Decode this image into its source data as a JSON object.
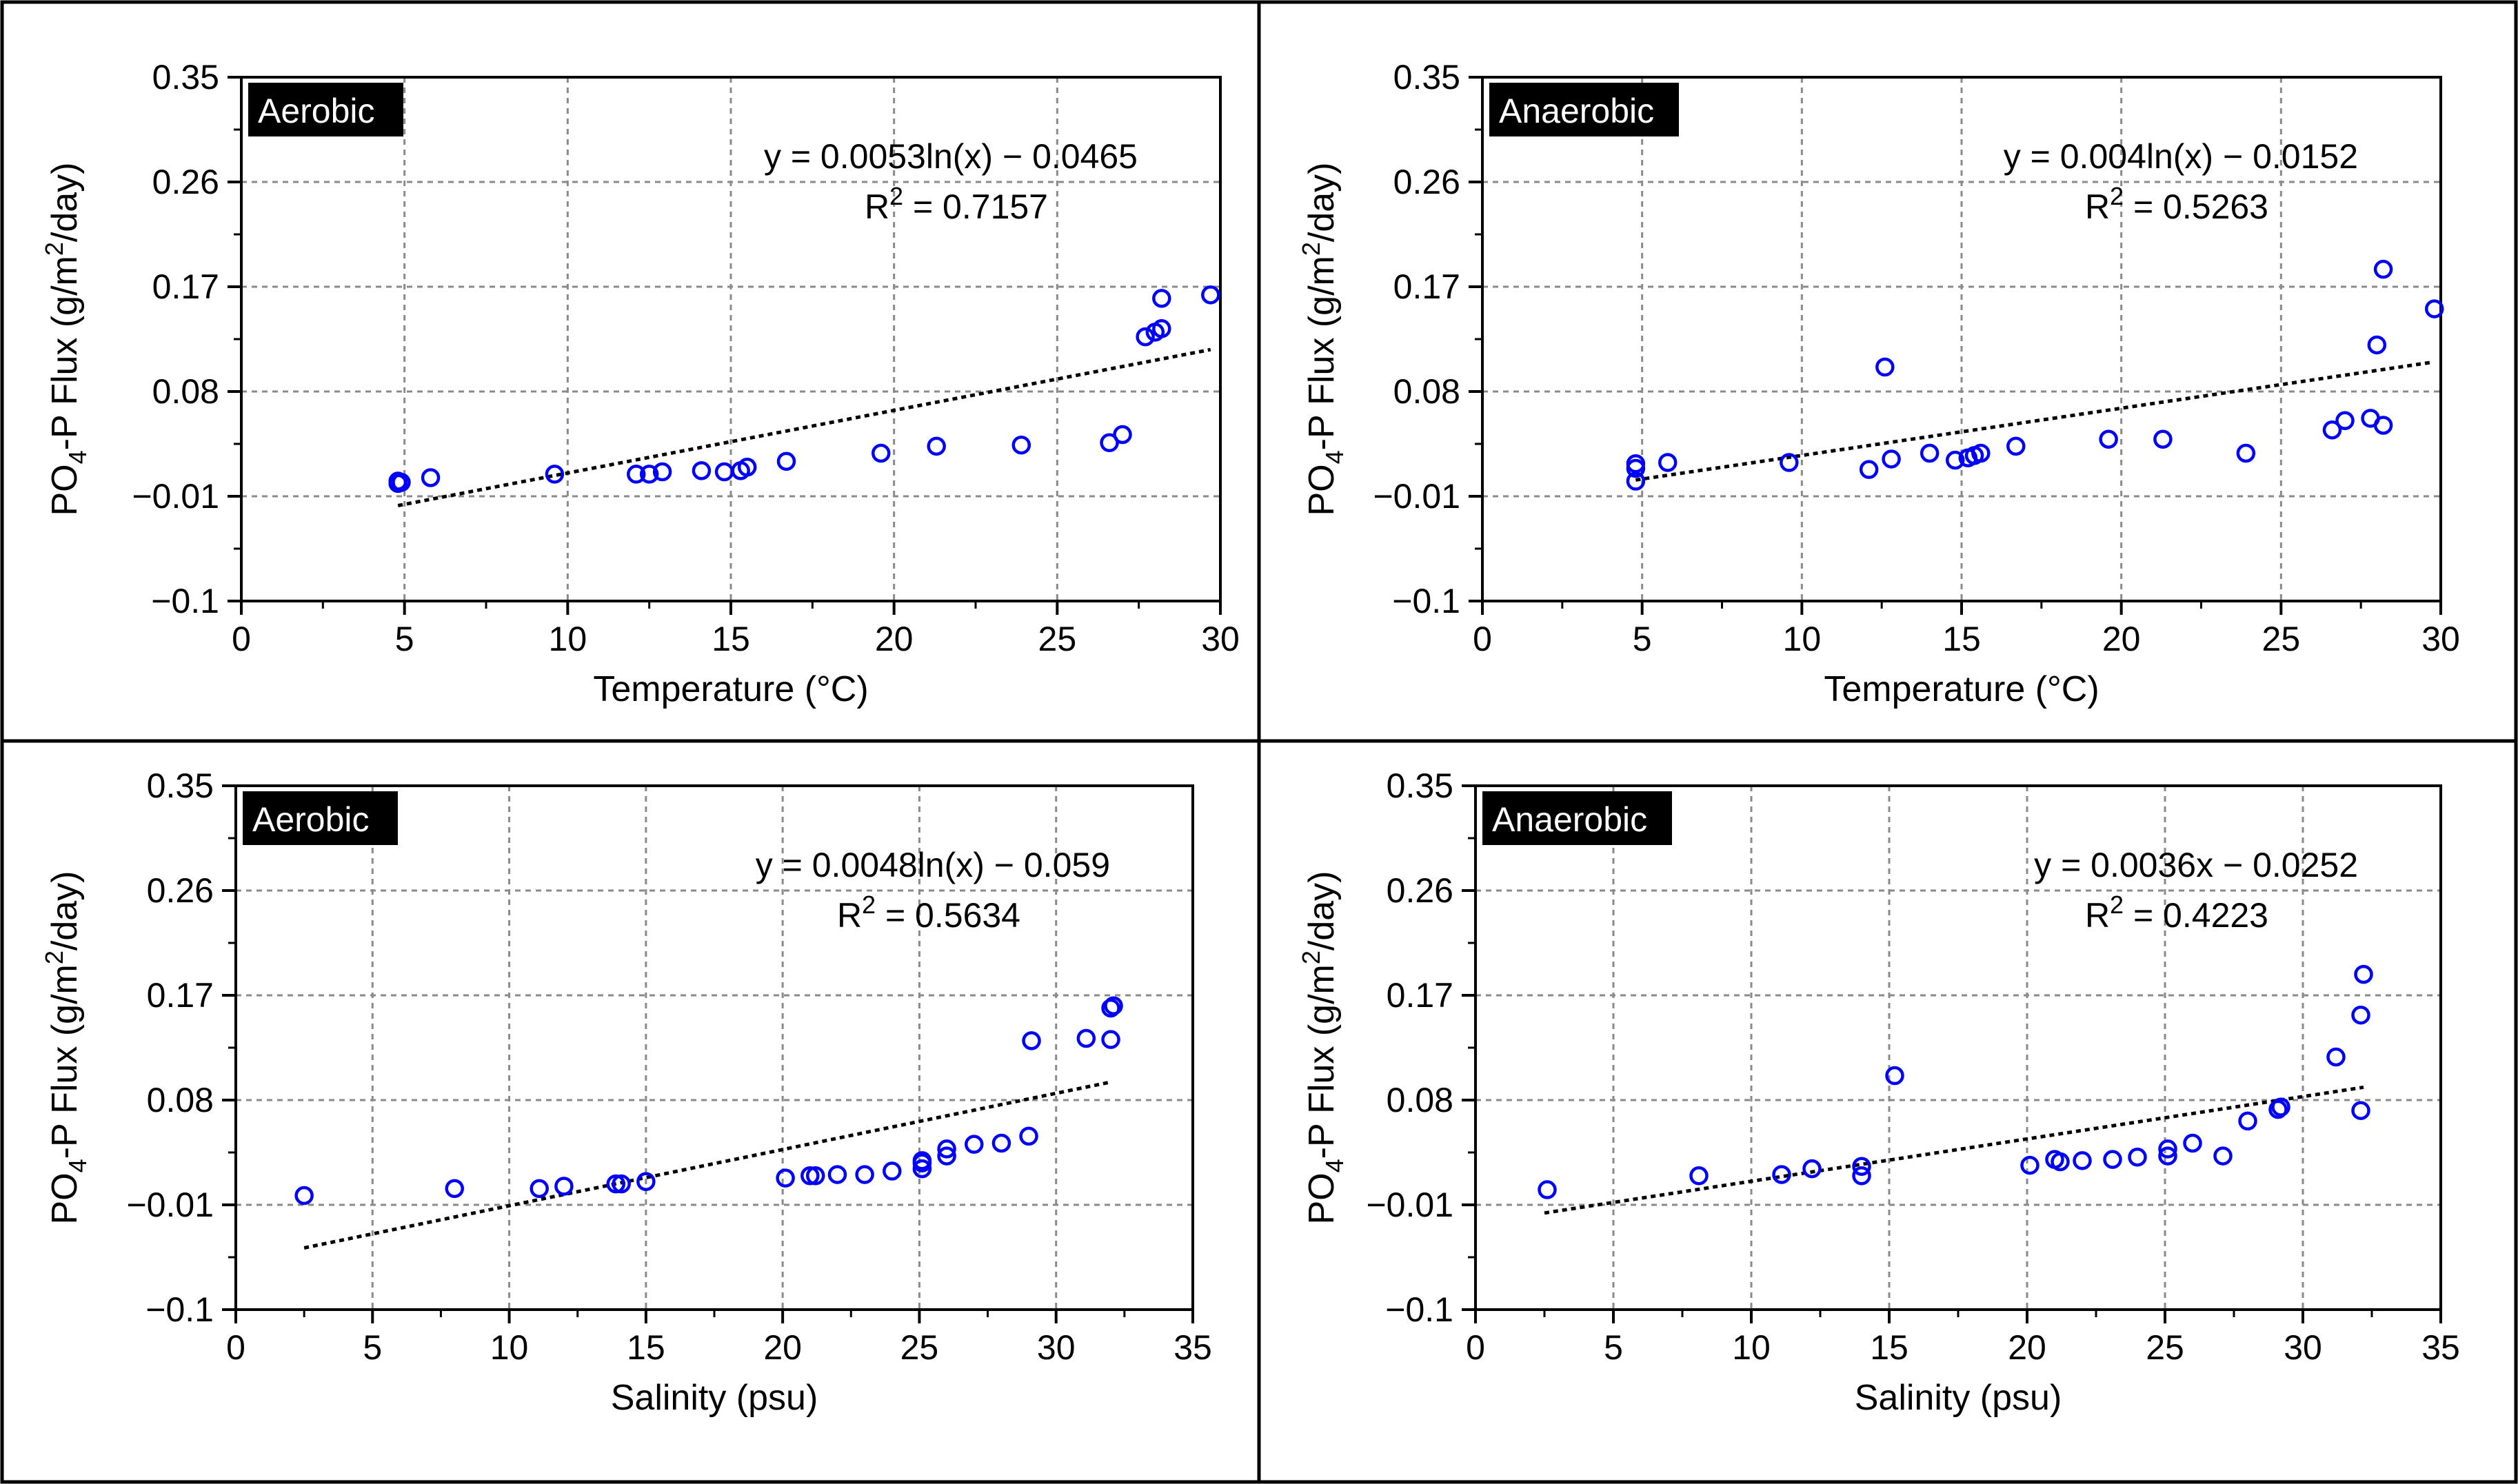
{
  "figure": {
    "line_color": "#000000",
    "marker_color": "#0000ff",
    "grid_color": "#8a8a8a",
    "label_bg": "#000000",
    "label_fg": "#ffffff"
  },
  "chart_data": [
    {
      "id": "temp-aerobic",
      "type": "scatter",
      "condition": "Aerobic",
      "xlabel": "Temperature (°C)",
      "ylabel": "PO4-P Flux (g/m2/day)",
      "xlim": [
        0,
        30
      ],
      "ylim": [
        -0.1,
        0.35
      ],
      "xticks": [
        0,
        5,
        10,
        15,
        20,
        25,
        30
      ],
      "yticks": [
        -0.1,
        -0.01,
        0.08,
        0.17,
        0.26,
        0.35
      ],
      "equation": "y = 0.0053ln(x) − 0.0465",
      "r2_label": "R2 = 0.7157",
      "r2_prefix": "R",
      "r2_value": " = 0.7157",
      "trend": {
        "model": "linear-fit",
        "x": [
          4.8,
          29.7
        ],
        "y": [
          -0.018,
          0.116
        ]
      },
      "points": [
        [
          4.8,
          0.003
        ],
        [
          4.8,
          0.001
        ],
        [
          4.9,
          0.002
        ],
        [
          5.8,
          0.006
        ],
        [
          9.6,
          0.009
        ],
        [
          12.1,
          0.009
        ],
        [
          12.5,
          0.009
        ],
        [
          12.9,
          0.011
        ],
        [
          14.1,
          0.012
        ],
        [
          14.8,
          0.011
        ],
        [
          15.3,
          0.012
        ],
        [
          15.5,
          0.015
        ],
        [
          16.7,
          0.02
        ],
        [
          19.6,
          0.027
        ],
        [
          21.3,
          0.033
        ],
        [
          23.9,
          0.034
        ],
        [
          26.6,
          0.036
        ],
        [
          27.0,
          0.043
        ],
        [
          27.7,
          0.127
        ],
        [
          28.0,
          0.131
        ],
        [
          28.2,
          0.134
        ],
        [
          28.2,
          0.16
        ],
        [
          29.7,
          0.163
        ]
      ]
    },
    {
      "id": "temp-anaerobic",
      "type": "scatter",
      "condition": "Anaerobic",
      "xlabel": "Temperature (°C)",
      "ylabel": "PO4-P Flux (g/m2/day)",
      "xlim": [
        0,
        30
      ],
      "ylim": [
        -0.1,
        0.35
      ],
      "xticks": [
        0,
        5,
        10,
        15,
        20,
        25,
        30
      ],
      "yticks": [
        -0.1,
        -0.01,
        0.08,
        0.17,
        0.26,
        0.35
      ],
      "equation": "y = 0.004ln(x) − 0.0152",
      "r2_label": "R2 = 0.5263",
      "r2_prefix": "R",
      "r2_value": " = 0.5263",
      "trend": {
        "model": "linear-fit",
        "x": [
          4.8,
          29.7
        ],
        "y": [
          0.004,
          0.105
        ]
      },
      "points": [
        [
          4.8,
          0.003
        ],
        [
          4.8,
          0.014
        ],
        [
          4.8,
          0.018
        ],
        [
          5.8,
          0.019
        ],
        [
          9.6,
          0.019
        ],
        [
          12.1,
          0.013
        ],
        [
          12.8,
          0.022
        ],
        [
          12.6,
          0.101
        ],
        [
          14.0,
          0.027
        ],
        [
          14.8,
          0.021
        ],
        [
          15.2,
          0.023
        ],
        [
          15.4,
          0.025
        ],
        [
          15.6,
          0.027
        ],
        [
          16.7,
          0.033
        ],
        [
          19.6,
          0.039
        ],
        [
          21.3,
          0.039
        ],
        [
          23.9,
          0.027
        ],
        [
          26.6,
          0.047
        ],
        [
          27.0,
          0.055
        ],
        [
          27.8,
          0.057
        ],
        [
          28.2,
          0.051
        ],
        [
          28.0,
          0.12
        ],
        [
          28.2,
          0.185
        ],
        [
          29.8,
          0.151
        ]
      ]
    },
    {
      "id": "sal-aerobic",
      "type": "scatter",
      "condition": "Aerobic",
      "xlabel": "Salinity (psu)",
      "ylabel": "PO4-P Flux (g/m2/day)",
      "xlim": [
        0,
        35
      ],
      "ylim": [
        -0.1,
        0.35
      ],
      "xticks": [
        0,
        5,
        10,
        15,
        20,
        25,
        30,
        35
      ],
      "yticks": [
        -0.1,
        -0.01,
        0.08,
        0.17,
        0.26,
        0.35
      ],
      "equation": "y = 0.0048ln(x) − 0.059",
      "r2_label": "R2 = 0.5634",
      "r2_prefix": "R",
      "r2_value": " = 0.5634",
      "trend": {
        "model": "linear-fit",
        "x": [
          2.5,
          31.9
        ],
        "y": [
          -0.047,
          0.095
        ]
      },
      "points": [
        [
          2.5,
          -0.002
        ],
        [
          8.0,
          0.004
        ],
        [
          11.1,
          0.004
        ],
        [
          12.0,
          0.006
        ],
        [
          13.9,
          0.008
        ],
        [
          14.1,
          0.008
        ],
        [
          15.0,
          0.01
        ],
        [
          20.1,
          0.013
        ],
        [
          21.0,
          0.015
        ],
        [
          21.2,
          0.015
        ],
        [
          22.0,
          0.016
        ],
        [
          23.0,
          0.016
        ],
        [
          24.0,
          0.019
        ],
        [
          25.1,
          0.021
        ],
        [
          25.1,
          0.026
        ],
        [
          25.1,
          0.028
        ],
        [
          26.0,
          0.032
        ],
        [
          26.0,
          0.038
        ],
        [
          27.0,
          0.042
        ],
        [
          28.0,
          0.043
        ],
        [
          29.0,
          0.049
        ],
        [
          29.1,
          0.131
        ],
        [
          31.1,
          0.133
        ],
        [
          32.0,
          0.132
        ],
        [
          32.0,
          0.159
        ],
        [
          32.1,
          0.161
        ]
      ]
    },
    {
      "id": "sal-anaerobic",
      "type": "scatter",
      "condition": "Anaerobic",
      "xlabel": "Salinity (psu)",
      "ylabel": "PO4-P Flux (g/m2/day)",
      "xlim": [
        0,
        35
      ],
      "ylim": [
        -0.1,
        0.35
      ],
      "xticks": [
        0,
        5,
        10,
        15,
        20,
        25,
        30,
        35
      ],
      "yticks": [
        -0.1,
        -0.01,
        0.08,
        0.17,
        0.26,
        0.35
      ],
      "equation": "y = 0.0036x − 0.0252",
      "r2_label": "R2 = 0.4223",
      "r2_prefix": "R",
      "r2_value": " = 0.4223",
      "trend": {
        "model": "linear-fit",
        "x": [
          2.5,
          32.2
        ],
        "y": [
          -0.017,
          0.091
        ]
      },
      "points": [
        [
          2.6,
          0.003
        ],
        [
          8.1,
          0.015
        ],
        [
          11.1,
          0.016
        ],
        [
          12.2,
          0.021
        ],
        [
          14.0,
          0.023
        ],
        [
          14.0,
          0.015
        ],
        [
          15.2,
          0.101
        ],
        [
          20.1,
          0.024
        ],
        [
          21.0,
          0.029
        ],
        [
          21.2,
          0.027
        ],
        [
          22.0,
          0.028
        ],
        [
          23.1,
          0.029
        ],
        [
          24.0,
          0.031
        ],
        [
          25.1,
          0.032
        ],
        [
          25.1,
          0.038
        ],
        [
          26.0,
          0.043
        ],
        [
          27.1,
          0.032
        ],
        [
          28.0,
          0.062
        ],
        [
          29.1,
          0.072
        ],
        [
          29.2,
          0.074
        ],
        [
          31.2,
          0.117
        ],
        [
          32.1,
          0.071
        ],
        [
          32.1,
          0.153
        ],
        [
          32.2,
          0.188
        ]
      ]
    }
  ]
}
